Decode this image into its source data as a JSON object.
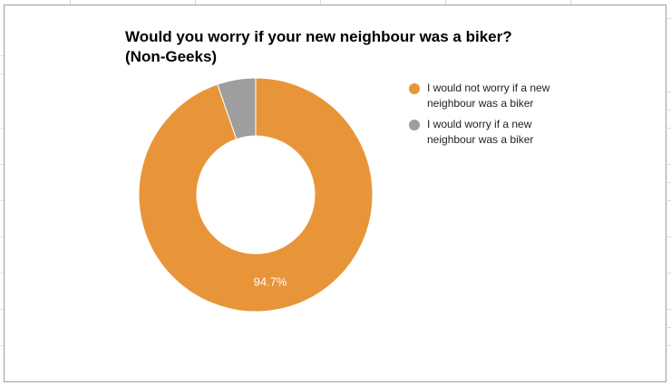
{
  "chart_data": {
    "type": "pie",
    "style": "donut",
    "title": "Would you worry if your new neighbour was a biker? (Non-Geeks)",
    "categories": [
      "I would not worry if a new neighbour was a biker",
      "I would worry if a new neighbour was a biker"
    ],
    "values": [
      94.7,
      5.3
    ],
    "data_labels": [
      "94.7%",
      ""
    ],
    "colors": [
      "#e8953a",
      "#9e9e9e"
    ],
    "legend_position": "right"
  }
}
